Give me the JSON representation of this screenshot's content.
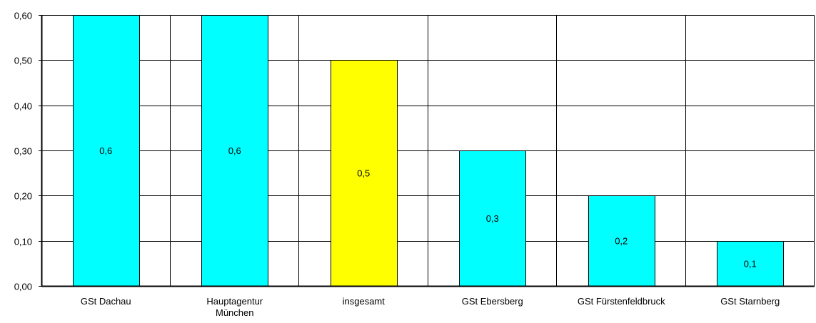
{
  "chart_data": {
    "type": "bar",
    "categories": [
      [
        "GSt Dachau"
      ],
      [
        "Hauptagentur",
        "München"
      ],
      [
        "insgesamt"
      ],
      [
        "GSt Ebersberg"
      ],
      [
        "GSt Fürstenfeldbruck"
      ],
      [
        "GSt Starnberg"
      ]
    ],
    "values": [
      0.6,
      0.6,
      0.5,
      0.3,
      0.2,
      0.1
    ],
    "value_labels": [
      "0,6",
      "0,6",
      "0,5",
      "0,3",
      "0,2",
      "0,1"
    ],
    "bar_colors": [
      "#00ffff",
      "#00ffff",
      "#ffff00",
      "#00ffff",
      "#00ffff",
      "#00ffff"
    ],
    "y_ticks": [
      {
        "value": 0.0,
        "label": "0,00"
      },
      {
        "value": 0.1,
        "label": "0,10"
      },
      {
        "value": 0.2,
        "label": "0,20"
      },
      {
        "value": 0.3,
        "label": "0,30"
      },
      {
        "value": 0.4,
        "label": "0,40"
      },
      {
        "value": 0.5,
        "label": "0,50"
      },
      {
        "value": 0.6,
        "label": "0,60"
      }
    ],
    "ylim": [
      0,
      0.6
    ],
    "grid": true,
    "legend": "none"
  }
}
